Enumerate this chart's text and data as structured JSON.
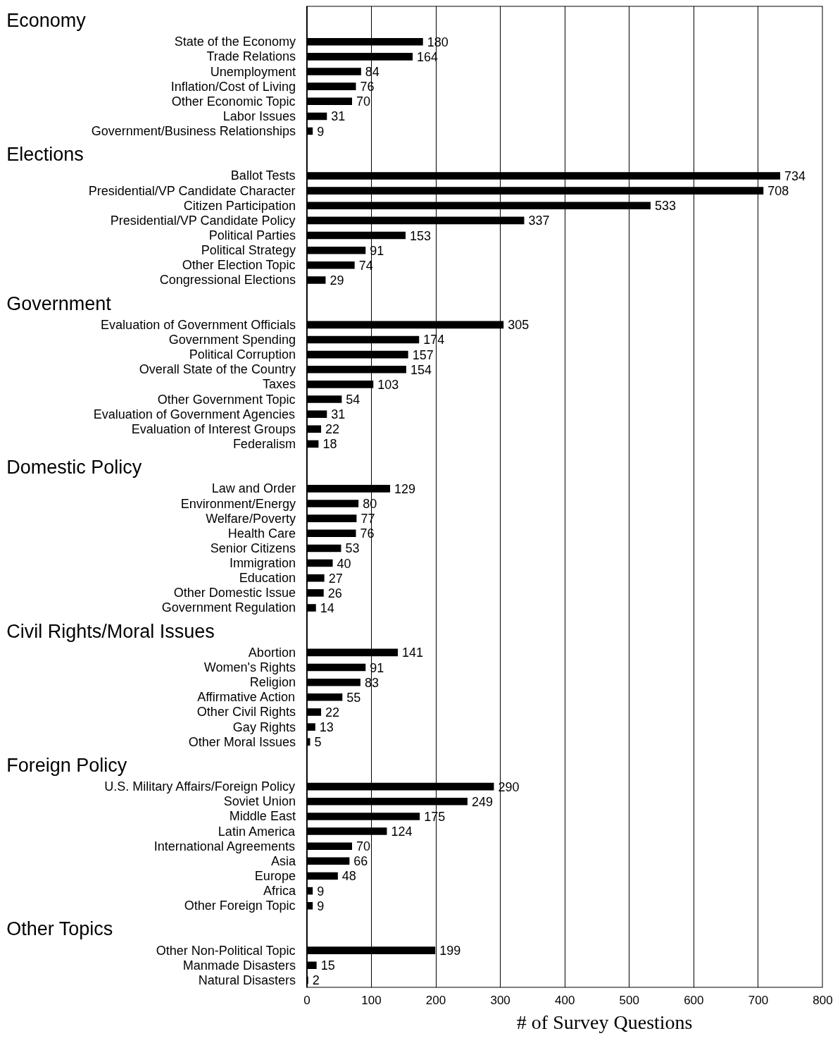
{
  "chart_data": {
    "type": "bar",
    "orientation": "horizontal",
    "xlabel": "# of Survey Questions",
    "color": "#000000",
    "xlim": [
      0,
      800
    ],
    "xticks": [
      0,
      100,
      200,
      300,
      400,
      500,
      600,
      700,
      800
    ],
    "grid": "x",
    "data_labels": true,
    "annotations": [
      "Economy",
      "Elections",
      "Government",
      "Domestic Policy",
      "Civil Rights/Moral Issues",
      "Foreign Policy",
      "Other Topics"
    ],
    "categories": [
      null,
      null,
      "State of the Economy",
      "Trade Relations",
      "Unemployment",
      "Inflation/Cost of Living",
      "Other Economic Topic",
      "Labor Issues",
      "Government/Business Relationships",
      null,
      null,
      "Ballot Tests",
      "Presidential/VP Candidate Character",
      "Citizen Participation",
      "Presidential/VP Candidate Policy",
      "Political Parties",
      "Political Strategy",
      "Other Election Topic",
      "Congressional Elections",
      null,
      null,
      "Evaluation of Government Officials",
      "Government Spending",
      "Political Corruption",
      "Overall State of the Country",
      "Taxes",
      "Other Government Topic",
      "Evaluation of Government Agencies",
      "Evaluation of Interest Groups",
      "Federalism",
      null,
      null,
      "Law and Order",
      "Environment/Energy",
      "Welfare/Poverty",
      "Health Care",
      "Senior Citizens",
      "Immigration",
      "Education",
      "Other Domestic Issue",
      "Government Regulation",
      null,
      null,
      "Abortion",
      "Women's Rights",
      "Religion",
      "Affirmative Action",
      "Other Civil Rights",
      "Gay Rights",
      "Other Moral Issues",
      null,
      null,
      "U.S. Military Affairs/Foreign Policy",
      "Soviet Union",
      "Middle East",
      "Latin America",
      "International Agreements",
      "Asia",
      "Europe",
      "Africa",
      "Other Foreign Topic",
      null,
      null,
      "Other Non-Political Topic",
      "Manmade Disasters",
      "Natural Disasters"
    ],
    "values": [
      null,
      null,
      180,
      164,
      84,
      76,
      70,
      31,
      9,
      null,
      null,
      734,
      708,
      533,
      337,
      153,
      91,
      74,
      29,
      null,
      null,
      305,
      174,
      157,
      154,
      103,
      54,
      31,
      22,
      18,
      null,
      null,
      129,
      80,
      77,
      76,
      53,
      40,
      27,
      26,
      14,
      null,
      null,
      141,
      91,
      83,
      55,
      22,
      13,
      5,
      null,
      null,
      290,
      249,
      175,
      124,
      70,
      66,
      48,
      9,
      9,
      null,
      null,
      199,
      15,
      2
    ]
  }
}
